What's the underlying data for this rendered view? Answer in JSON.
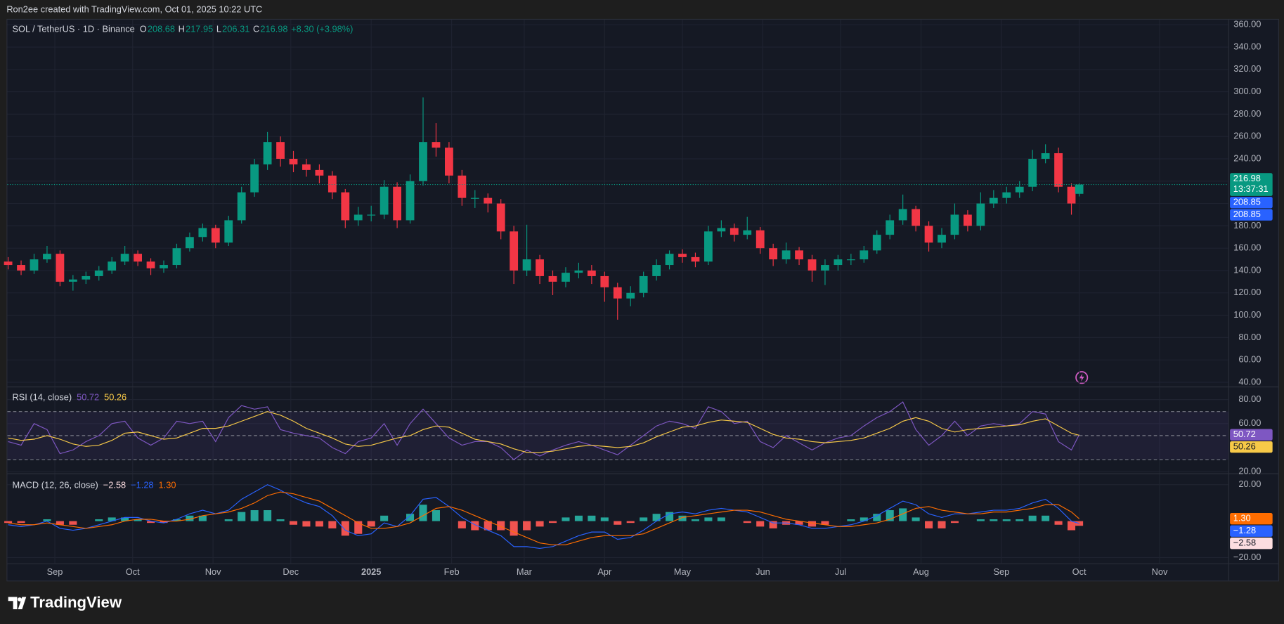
{
  "header": {
    "attribution": "Ron2ee created with TradingView.com, Oct 01, 2025 10:22 UTC"
  },
  "footer": {
    "logo": "TradingView"
  },
  "chart_data": [
    {
      "type": "candlestick",
      "title": "SOL / TetherUS · 1D · Binance",
      "legend": [
        {
          "label": "O",
          "value": 208.68
        },
        {
          "label": "H",
          "value": 217.95
        },
        {
          "label": "L",
          "value": 206.31
        },
        {
          "label": "C",
          "value": 216.98
        }
      ],
      "change": "+8.30 (+3.98%)",
      "colors": {
        "up": "#089981",
        "down": "#f23645"
      },
      "xlim": [
        -0.3,
        470.5
      ],
      "xticks": [
        {
          "value": 18,
          "label": "Sep"
        },
        {
          "value": 48,
          "label": "Oct"
        },
        {
          "value": 79,
          "label": "Nov"
        },
        {
          "value": 109,
          "label": "Dec"
        },
        {
          "value": 140,
          "label": "2025"
        },
        {
          "value": 171,
          "label": "Feb"
        },
        {
          "value": 199,
          "label": "Mar"
        },
        {
          "value": 230,
          "label": "Apr"
        },
        {
          "value": 260,
          "label": "May"
        },
        {
          "value": 291,
          "label": "Jun"
        },
        {
          "value": 321,
          "label": "Jul"
        },
        {
          "value": 352,
          "label": "Aug"
        },
        {
          "value": 383,
          "label": "Sep"
        },
        {
          "value": 413,
          "label": "Oct"
        },
        {
          "value": 444,
          "label": "Nov"
        }
      ],
      "ylim": [
        36.2,
        364.5
      ],
      "yticks": [
        {
          "value": 40,
          "label": "40.00"
        },
        {
          "value": 60,
          "label": "60.00"
        },
        {
          "value": 80,
          "label": "80.00"
        },
        {
          "value": 100,
          "label": "100.00"
        },
        {
          "value": 120,
          "label": "120.00"
        },
        {
          "value": 140,
          "label": "140.00"
        },
        {
          "value": 160,
          "label": "160.00"
        },
        {
          "value": 180,
          "label": "180.00"
        },
        {
          "value": 200,
          "label": "200.00"
        },
        {
          "value": 220,
          "label": "220.00"
        },
        {
          "value": 240,
          "label": "240.00"
        },
        {
          "value": 260,
          "label": "260.00"
        },
        {
          "value": 280,
          "label": "280.00"
        },
        {
          "value": 300,
          "label": "300.00"
        },
        {
          "value": 320,
          "label": "320.00"
        },
        {
          "value": 340,
          "label": "340.00"
        },
        {
          "value": 360,
          "label": "360.00"
        }
      ],
      "x": [
        0,
        5,
        10,
        15,
        20,
        25,
        30,
        35,
        40,
        45,
        50,
        55,
        60,
        65,
        70,
        75,
        80,
        85,
        90,
        95,
        100,
        105,
        110,
        115,
        120,
        125,
        130,
        135,
        140,
        145,
        150,
        155,
        160,
        165,
        170,
        175,
        180,
        185,
        190,
        195,
        200,
        205,
        210,
        215,
        220,
        225,
        230,
        235,
        240,
        245,
        250,
        255,
        260,
        265,
        270,
        275,
        280,
        285,
        290,
        295,
        300,
        305,
        310,
        315,
        320,
        325,
        330,
        335,
        340,
        345,
        350,
        355,
        360,
        365,
        370,
        375,
        380,
        385,
        390,
        395,
        400,
        405,
        410,
        413
      ],
      "open": [
        148,
        145,
        140,
        150,
        155,
        130,
        132,
        135,
        140,
        148,
        155,
        148,
        142,
        145,
        160,
        170,
        178,
        165,
        185,
        210,
        235,
        255,
        240,
        235,
        230,
        225,
        210,
        185,
        190,
        190,
        215,
        185,
        220,
        255,
        250,
        225,
        205,
        205,
        200,
        175,
        140,
        150,
        135,
        130,
        138,
        140,
        135,
        125,
        115,
        120,
        135,
        145,
        155,
        152,
        148,
        175,
        178,
        172,
        176,
        160,
        150,
        158,
        150,
        140,
        145,
        150,
        150,
        158,
        172,
        185,
        195,
        180,
        165,
        172,
        190,
        180,
        200,
        205,
        210,
        215,
        240,
        245,
        215,
        208.68
      ],
      "high": [
        152,
        149,
        155,
        162,
        158,
        136,
        139,
        144,
        152,
        162,
        158,
        151,
        149,
        164,
        174,
        182,
        181,
        189,
        215,
        240,
        264,
        260,
        247,
        240,
        235,
        229,
        213,
        197,
        198,
        221,
        219,
        226,
        295,
        272,
        255,
        230,
        212,
        209,
        204,
        180,
        181,
        154,
        140,
        143,
        147,
        145,
        139,
        129,
        126,
        139,
        150,
        158,
        159,
        156,
        180,
        185,
        182,
        188,
        179,
        164,
        165,
        161,
        154,
        150,
        154,
        155,
        162,
        176,
        190,
        208,
        198,
        184,
        178,
        200,
        194,
        210,
        212,
        215,
        220,
        248,
        253,
        250,
        218,
        217.95
      ],
      "low": [
        141,
        136,
        137,
        147,
        126,
        122,
        128,
        131,
        137,
        145,
        144,
        136,
        138,
        142,
        157,
        166,
        160,
        162,
        182,
        206,
        230,
        233,
        228,
        224,
        218,
        204,
        178,
        180,
        184,
        186,
        178,
        182,
        216,
        242,
        218,
        198,
        196,
        192,
        168,
        128,
        135,
        128,
        118,
        125,
        133,
        128,
        112,
        96,
        108,
        116,
        131,
        141,
        147,
        143,
        145,
        170,
        166,
        168,
        155,
        144,
        146,
        145,
        130,
        127,
        140,
        145,
        147,
        155,
        168,
        181,
        175,
        157,
        160,
        168,
        175,
        176,
        196,
        200,
        205,
        211,
        236,
        210,
        190,
        206.31
      ],
      "close": [
        145,
        140,
        150,
        155,
        130,
        132,
        135,
        140,
        148,
        155,
        148,
        142,
        145,
        160,
        170,
        178,
        165,
        185,
        210,
        235,
        255,
        240,
        235,
        230,
        225,
        210,
        185,
        190,
        190,
        215,
        185,
        220,
        255,
        250,
        225,
        205,
        205,
        200,
        175,
        140,
        150,
        135,
        130,
        138,
        140,
        135,
        125,
        115,
        120,
        135,
        145,
        155,
        152,
        148,
        175,
        178,
        172,
        176,
        160,
        150,
        158,
        150,
        140,
        145,
        150,
        150,
        158,
        172,
        185,
        195,
        180,
        165,
        172,
        190,
        180,
        200,
        205,
        210,
        215,
        240,
        245,
        215,
        200,
        216.98
      ],
      "badges": [
        {
          "value": 216.98,
          "color": "#089981",
          "sub": "13:37:31"
        },
        {
          "value": 208.85,
          "color": "#2962ff"
        },
        {
          "value": 208.85,
          "color": "#2962ff"
        }
      ]
    },
    {
      "type": "rsi",
      "title": "RSI (14, close)",
      "ylim": [
        18.6,
        90.2
      ],
      "yticks": [
        {
          "value": 20,
          "label": "20.00"
        },
        {
          "value": 60,
          "label": "60.00"
        },
        {
          "value": 80,
          "label": "80.00"
        }
      ],
      "band": [
        30,
        70
      ],
      "band_lines": [
        70,
        50,
        30
      ],
      "series": [
        {
          "color": "#7e57c2",
          "last": 50.72,
          "values": [
            45,
            42,
            60,
            55,
            35,
            38,
            45,
            50,
            60,
            62,
            48,
            42,
            48,
            62,
            60,
            62,
            45,
            65,
            75,
            72,
            74,
            55,
            52,
            50,
            48,
            40,
            35,
            45,
            48,
            60,
            42,
            60,
            72,
            60,
            48,
            42,
            45,
            45,
            40,
            30,
            38,
            33,
            38,
            42,
            45,
            42,
            38,
            34,
            42,
            50,
            58,
            62,
            60,
            56,
            74,
            70,
            60,
            62,
            45,
            40,
            50,
            44,
            38,
            44,
            48,
            50,
            58,
            65,
            70,
            78,
            55,
            42,
            50,
            62,
            50,
            58,
            60,
            58,
            60,
            70,
            68,
            45,
            38,
            50.72
          ]
        },
        {
          "color": "#f7c948",
          "last": 50.26,
          "values": [
            48,
            46,
            47,
            50,
            47,
            43,
            41,
            42,
            46,
            52,
            53,
            50,
            47,
            48,
            52,
            56,
            56,
            58,
            62,
            66,
            70,
            67,
            62,
            56,
            52,
            48,
            43,
            41,
            42,
            45,
            48,
            50,
            55,
            58,
            57,
            52,
            47,
            45,
            43,
            39,
            36,
            36,
            37,
            39,
            41,
            42,
            41,
            40,
            41,
            44,
            49,
            53,
            57,
            58,
            61,
            63,
            62,
            61,
            56,
            51,
            48,
            47,
            45,
            44,
            45,
            46,
            48,
            52,
            56,
            62,
            65,
            62,
            56,
            53,
            55,
            56,
            57,
            58,
            59,
            62,
            64,
            58,
            52,
            50.26
          ]
        }
      ]
    },
    {
      "type": "macd",
      "title": "MACD (12, 26, close)",
      "ylim": [
        -23.2,
        25.8
      ],
      "yticks": [
        {
          "value": -20,
          "label": "−20.00"
        },
        {
          "value": 20,
          "label": "20.00"
        }
      ],
      "legend": [
        {
          "value": -2.58,
          "label": "−2.58",
          "color": "#fcdde0"
        },
        {
          "value": -1.28,
          "label": "−1.28",
          "color": "#2962ff"
        },
        {
          "value": 1.3,
          "label": "1.30",
          "color": "#ff6d00"
        }
      ],
      "histogram": {
        "up": "#26a69a",
        "down": "#ef5350",
        "values": [
          -1,
          -1,
          0,
          1,
          -2,
          -2,
          0,
          1,
          2,
          2,
          1,
          -1,
          -1,
          1,
          3,
          3,
          0,
          1,
          5,
          6,
          6,
          1,
          -2,
          -3,
          -3,
          -4,
          -8,
          -7,
          -3,
          3,
          0,
          4,
          9,
          6,
          0,
          -4,
          -5,
          -5,
          -5,
          -8,
          -5,
          -3,
          -1,
          2,
          3,
          3,
          2,
          -2,
          -1,
          2,
          4,
          5,
          3,
          1,
          2,
          2,
          0,
          -1,
          -3,
          -4,
          -2,
          -2,
          -3,
          -2,
          0,
          1,
          2,
          4,
          6,
          7,
          2,
          -4,
          -4,
          -1,
          0,
          1,
          1,
          1,
          1,
          3,
          3,
          -2,
          -5,
          -2.58
        ]
      },
      "series": [
        {
          "color": "#2962ff",
          "values": [
            -2,
            -3,
            -2,
            0,
            -4,
            -5,
            -4,
            -2,
            0,
            2,
            2,
            0,
            -1,
            1,
            4,
            6,
            4,
            6,
            12,
            16,
            20,
            17,
            13,
            10,
            8,
            3,
            -5,
            -8,
            -7,
            -1,
            -3,
            3,
            12,
            13,
            8,
            2,
            -2,
            -5,
            -8,
            -14,
            -14,
            -15,
            -14,
            -11,
            -8,
            -6,
            -6,
            -10,
            -9,
            -5,
            0,
            4,
            5,
            4,
            6,
            7,
            6,
            5,
            2,
            -1,
            -1,
            -2,
            -4,
            -4,
            -3,
            -2,
            0,
            3,
            7,
            11,
            9,
            4,
            2,
            4,
            4,
            5,
            6,
            6,
            7,
            10,
            12,
            7,
            0,
            -1.28
          ]
        },
        {
          "color": "#ff6d00",
          "values": [
            -1,
            -2,
            -2,
            -1,
            -2,
            -3,
            -4,
            -3,
            -2,
            0,
            1,
            1,
            0,
            0,
            1,
            3,
            4,
            5,
            7,
            10,
            14,
            16,
            15,
            13,
            11,
            7,
            3,
            -1,
            -4,
            -4,
            -3,
            -1,
            3,
            7,
            8,
            6,
            3,
            0,
            -3,
            -6,
            -9,
            -12,
            -13,
            -13,
            -11,
            -9,
            -8,
            -8,
            -8,
            -7,
            -4,
            -1,
            2,
            3,
            4,
            5,
            6,
            6,
            5,
            3,
            1,
            0,
            -1,
            -2,
            -3,
            -3,
            -2,
            -1,
            1,
            4,
            7,
            8,
            6,
            5,
            4,
            4,
            5,
            5,
            6,
            7,
            9,
            9,
            5,
            1.3
          ]
        }
      ]
    }
  ]
}
